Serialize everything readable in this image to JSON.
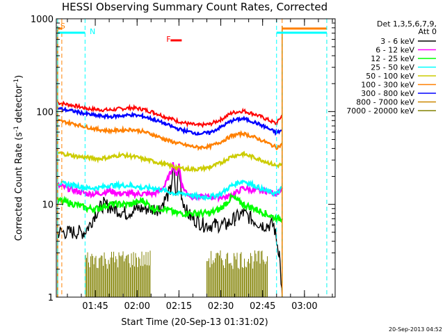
{
  "chart_data": {
    "type": "line",
    "title": "HESSI Observing Summary Count Rates, Corrected",
    "xlabel": "Start Time (20-Sep-13 01:31:02)",
    "ylabel": "Corrected Count Rate (s⁻¹ detector⁻¹)",
    "y_scale": "log",
    "ylim": [
      1,
      1000
    ],
    "y_ticks": [
      "1",
      "10",
      "100",
      "1000"
    ],
    "xlim": [
      "01:31:02",
      "03:11:00"
    ],
    "x_ticks": [
      "01:45",
      "02:00",
      "02:15",
      "02:30",
      "02:45",
      "03:00"
    ],
    "timestamp": "20-Sep-2013 04:52",
    "legend": {
      "placement": "right",
      "header": [
        "Det 1,3,5,6,7,9,",
        "Att 0"
      ],
      "entries": [
        {
          "name": "3 - 6 keV",
          "color": "#000000"
        },
        {
          "name": "6 - 12 keV",
          "color": "#ff00ff"
        },
        {
          "name": "12 - 25 keV",
          "color": "#00ff00"
        },
        {
          "name": "25 - 50 keV",
          "color": "#00ffff"
        },
        {
          "name": "50 - 100 keV",
          "color": "#cccc00"
        },
        {
          "name": "100 - 300 keV",
          "color": "#ff8000"
        },
        {
          "name": "300 - 800 keV",
          "color": "#0000ff"
        },
        {
          "name": "800 - 7000 keV",
          "color": "#cc8800"
        },
        {
          "name": "7000 - 20000 keV",
          "color": "#808000"
        }
      ]
    },
    "annotations": [
      {
        "label": "S",
        "color": "#ff8000"
      },
      {
        "label": "N",
        "color": "#00ffff"
      },
      {
        "label": "F",
        "color": "#ff0000"
      }
    ],
    "intervals": [
      {
        "label": "saa",
        "color": "#ff8000",
        "times": [
          [
            "01:31:30",
            "01:33:00"
          ],
          [
            "02:52:00",
            "03:08:00"
          ]
        ]
      },
      {
        "label": "night",
        "color": "#00ffff",
        "times": [
          [
            "01:31:30",
            "01:41:20"
          ],
          [
            "02:50:00",
            "03:08:00"
          ]
        ]
      },
      {
        "label": "flare",
        "color": "#ff0000",
        "times": [
          [
            "02:12:00",
            "02:16:00"
          ]
        ]
      }
    ],
    "series": [
      {
        "name": "3 - 6 keV",
        "color": "#000000",
        "x": [
          "01:31:30",
          "01:38",
          "01:41",
          "01:43",
          "01:45",
          "01:48",
          "01:52",
          "01:56",
          "02:00",
          "02:04",
          "02:08",
          "02:12",
          "02:13",
          "02:14",
          "02:15",
          "02:16",
          "02:18",
          "02:20",
          "02:24",
          "02:28",
          "02:32",
          "02:35",
          "02:38",
          "02:41",
          "02:45",
          "02:49",
          "02:50",
          "02:51",
          "02:52"
        ],
        "y": [
          5,
          5,
          5,
          6,
          8,
          10,
          9,
          8,
          9,
          9,
          9,
          14,
          25,
          12,
          25,
          12,
          8,
          7,
          6,
          6,
          6,
          7,
          8,
          7,
          6,
          6,
          4,
          3,
          1
        ]
      },
      {
        "name": "6 - 12 keV",
        "color": "#ff00ff",
        "x": [
          "01:31:30",
          "01:38",
          "01:42",
          "01:46",
          "01:50",
          "01:54",
          "01:58",
          "02:02",
          "02:06",
          "02:08",
          "02:10",
          "02:12",
          "02:13",
          "02:14",
          "02:15",
          "02:16",
          "02:18",
          "02:20",
          "02:24",
          "02:28",
          "02:32",
          "02:35",
          "02:38",
          "02:42",
          "02:46",
          "02:50",
          "02:52"
        ],
        "y": [
          16,
          14,
          13,
          13,
          14,
          13,
          13,
          13,
          13,
          14,
          16,
          22,
          28,
          20,
          27,
          16,
          13,
          12,
          12,
          12,
          12,
          13,
          15,
          14,
          14,
          13,
          15
        ]
      },
      {
        "name": "12 - 25 keV",
        "color": "#00ff00",
        "x": [
          "01:31:30",
          "01:38",
          "01:42",
          "01:46",
          "01:50",
          "01:54",
          "01:58",
          "02:02",
          "02:06",
          "02:10",
          "02:14",
          "02:18",
          "02:22",
          "02:26",
          "02:30",
          "02:34",
          "02:38",
          "02:42",
          "02:46",
          "02:50",
          "02:52"
        ],
        "y": [
          11,
          10,
          9,
          9,
          10,
          10,
          10,
          11,
          9,
          9,
          8,
          8,
          8,
          8,
          9,
          12,
          10,
          9,
          8,
          7,
          7
        ]
      },
      {
        "name": "25 - 50 keV",
        "color": "#00ffff",
        "x": [
          "01:31:30",
          "01:38",
          "01:42",
          "01:46",
          "01:50",
          "01:54",
          "01:58",
          "02:02",
          "02:06",
          "02:10",
          "02:14",
          "02:18",
          "02:22",
          "02:26",
          "02:30",
          "02:34",
          "02:38",
          "02:42",
          "02:46",
          "02:50",
          "02:52"
        ],
        "y": [
          17,
          16,
          15,
          15,
          16,
          16,
          16,
          15,
          15,
          14,
          13,
          13,
          12,
          12,
          13,
          16,
          18,
          16,
          14,
          13,
          15
        ]
      },
      {
        "name": "50 - 100 keV",
        "color": "#cccc00",
        "x": [
          "01:31:30",
          "01:38",
          "01:42",
          "01:46",
          "01:50",
          "01:54",
          "01:58",
          "02:02",
          "02:06",
          "02:10",
          "02:14",
          "02:18",
          "02:22",
          "02:26",
          "02:30",
          "02:34",
          "02:38",
          "02:42",
          "02:46",
          "02:50",
          "02:52"
        ],
        "y": [
          36,
          33,
          32,
          31,
          32,
          34,
          33,
          31,
          29,
          27,
          25,
          24,
          24,
          25,
          28,
          33,
          35,
          32,
          29,
          26,
          27
        ]
      },
      {
        "name": "100 - 300 keV",
        "color": "#ff8000",
        "x": [
          "01:31:30",
          "01:38",
          "01:42",
          "01:46",
          "01:50",
          "01:54",
          "01:58",
          "02:02",
          "02:06",
          "02:10",
          "02:14",
          "02:18",
          "02:22",
          "02:26",
          "02:30",
          "02:34",
          "02:38",
          "02:42",
          "02:46",
          "02:50",
          "02:52"
        ],
        "y": [
          80,
          73,
          68,
          64,
          62,
          63,
          64,
          61,
          56,
          50,
          46,
          43,
          41,
          42,
          47,
          55,
          58,
          53,
          47,
          41,
          44
        ]
      },
      {
        "name": "300 - 800 keV",
        "color": "#0000ff",
        "x": [
          "01:31:30",
          "01:38",
          "01:42",
          "01:46",
          "01:50",
          "01:54",
          "01:58",
          "02:02",
          "02:06",
          "02:10",
          "02:14",
          "02:18",
          "02:22",
          "02:26",
          "02:30",
          "02:34",
          "02:38",
          "02:42",
          "02:46",
          "02:50",
          "02:52"
        ],
        "y": [
          108,
          100,
          94,
          90,
          88,
          90,
          92,
          89,
          82,
          74,
          66,
          61,
          58,
          59,
          68,
          80,
          84,
          77,
          68,
          59,
          63
        ]
      },
      {
        "name": "800 - 7000 keV",
        "color": "#cc8800",
        "x": [
          "01:31:30",
          "01:33:00",
          "02:52:00",
          "02:52:30"
        ],
        "y": [
          1,
          1,
          1,
          1
        ]
      },
      {
        "name": "7000 - 20000 keV",
        "color": "#808000",
        "x": [
          "01:41:30",
          "01:43",
          "01:45",
          "01:47",
          "01:49",
          "01:51",
          "01:53",
          "01:55",
          "01:57",
          "01:59",
          "02:01",
          "02:03",
          "02:05",
          "02:25",
          "02:27",
          "02:29",
          "02:31",
          "02:33",
          "02:35",
          "02:37",
          "02:39",
          "02:41",
          "02:43",
          "02:45",
          "02:47"
        ],
        "y": [
          3,
          2,
          3,
          2,
          3,
          2,
          3,
          2,
          3,
          2,
          3,
          2,
          3,
          3,
          2,
          3,
          2,
          3,
          2,
          3,
          2,
          3,
          2,
          3,
          2
        ]
      }
    ],
    "envelope": [
      {
        "name": "upper",
        "color": "#ff0000",
        "x": [
          "01:31:30",
          "01:38",
          "01:42",
          "01:46",
          "01:50",
          "01:54",
          "01:58",
          "02:02",
          "02:06",
          "02:10",
          "02:14",
          "02:18",
          "02:22",
          "02:26",
          "02:30",
          "02:34",
          "02:38",
          "02:42",
          "02:46",
          "02:50",
          "02:52"
        ],
        "y": [
          125,
          115,
          108,
          105,
          104,
          107,
          110,
          106,
          98,
          88,
          80,
          74,
          71,
          73,
          82,
          97,
          102,
          94,
          84,
          74,
          92
        ]
      }
    ]
  }
}
